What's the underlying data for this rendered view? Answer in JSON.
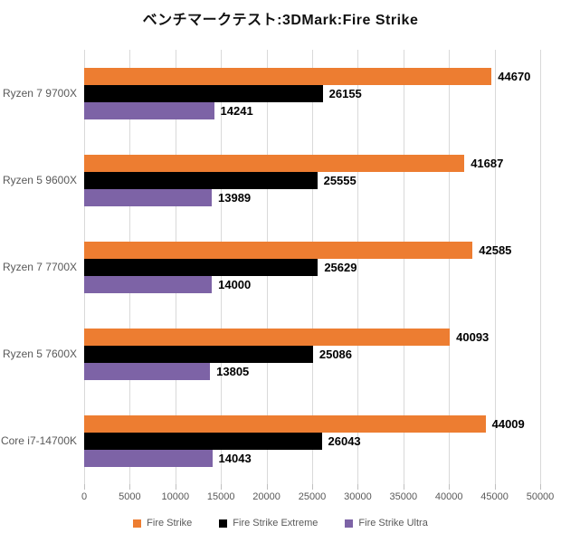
{
  "title": "ベンチマークテスト:3DMark:Fire Strike",
  "chart_data": {
    "type": "bar",
    "orientation": "horizontal",
    "title": "ベンチマークテスト:3DMark:Fire Strike",
    "categories": [
      "Ryzen 7 9700X",
      "Ryzen 5 9600X",
      "Ryzen 7 7700X",
      "Ryzen 5 7600X",
      "Core i7-14700K"
    ],
    "series": [
      {
        "name": "Fire Strike",
        "color": "#ED7D31",
        "values": [
          44670,
          41687,
          42585,
          40093,
          44009
        ]
      },
      {
        "name": "Fire Strike Extreme",
        "color": "#000000",
        "values": [
          26155,
          25555,
          25629,
          25086,
          26043
        ]
      },
      {
        "name": "Fire Strike Ultra",
        "color": "#7D63A6",
        "values": [
          14241,
          13989,
          14000,
          13805,
          14043
        ]
      }
    ],
    "xlim": [
      0,
      50000
    ],
    "x_tick_step": 5000,
    "x_tick_labels": [
      "0",
      "5000",
      "10000",
      "15000",
      "20000",
      "25000",
      "30000",
      "35000",
      "40000",
      "45000",
      "50000"
    ],
    "grid": true,
    "legend_position": "bottom",
    "value_labels_shown": true
  },
  "styles": {
    "grid_color": "#D9D9D9",
    "tick_color": "#BFBFBF",
    "axis_label_color": "#595959",
    "category_label_color": "#595959",
    "value_label_color": "#000000",
    "background": "#FFFFFF"
  }
}
